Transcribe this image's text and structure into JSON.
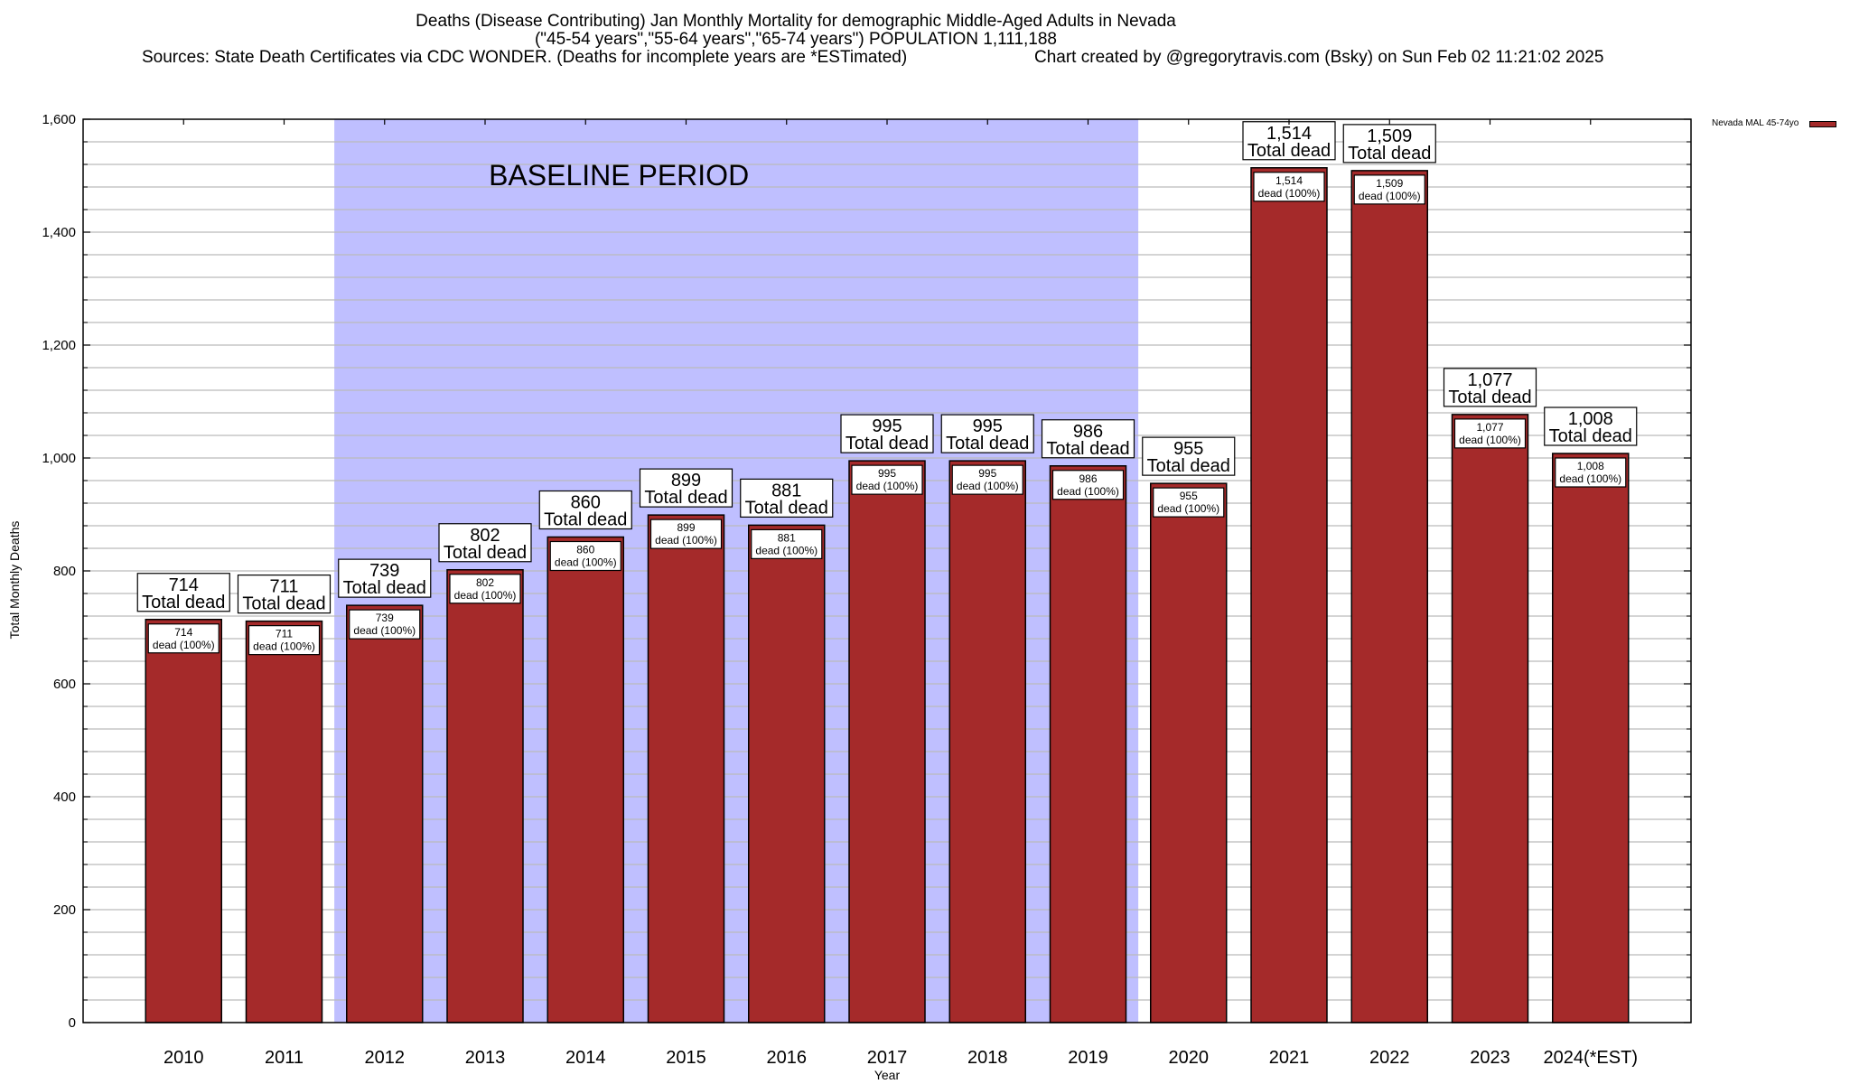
{
  "title": {
    "line1": "Deaths (Disease Contributing) Jan Monthly Mortality for demographic Middle-Aged Adults in Nevada",
    "line2": "(\"45-54 years\",\"55-64 years\",\"65-74 years\") POPULATION 1,111,188",
    "sources": "Sources: State Death Certificates via CDC WONDER. (Deaths for incomplete years are *ESTimated)",
    "credit": "Chart created by @gregorytravis.com (Bsky) on Sun Feb 02 11:21:02 2025"
  },
  "colors": {
    "bar": "#A52A2A",
    "baseline_region": "#BFBFFF",
    "grid": "#BBBBBB"
  },
  "chart_data": {
    "type": "bar",
    "title": "Deaths (Disease Contributing) Jan Monthly Mortality for demographic Middle-Aged Adults in Nevada",
    "xlabel": "Year",
    "ylabel": "Total Monthly Deaths",
    "ylim": [
      0,
      1600
    ],
    "yticks": [
      0,
      200,
      400,
      600,
      800,
      1000,
      1200,
      1400,
      1600
    ],
    "ytick_labels": [
      "0",
      "200",
      "400",
      "600",
      "800",
      "1,000",
      "1,200",
      "1,400",
      "1,600"
    ],
    "minor_grid_step": 40,
    "grid": true,
    "legend": {
      "entries": [
        "Nevada MAL 45-74yo"
      ],
      "placement": "top-right-outside"
    },
    "categories": [
      "2010",
      "2011",
      "2012",
      "2013",
      "2014",
      "2015",
      "2016",
      "2017",
      "2018",
      "2019",
      "2020",
      "2021",
      "2022",
      "2023",
      "2024(*EST)"
    ],
    "series": [
      {
        "name": "Nevada MAL 45-74yo",
        "values": [
          714,
          711,
          739,
          802,
          860,
          899,
          881,
          995,
          995,
          986,
          955,
          1514,
          1509,
          1077,
          1008
        ]
      }
    ],
    "top_labels": [
      "714",
      "711",
      "739",
      "802",
      "860",
      "899",
      "881",
      "995",
      "995",
      "986",
      "955",
      "1,514",
      "1,509",
      "1,077",
      "1,008"
    ],
    "top_label_suffix": "Total dead",
    "inner_label_suffix": "dead (100%)",
    "annotations": [
      {
        "type": "shaded_region",
        "label": "BASELINE PERIOD",
        "from_category": "2012",
        "to_category": "2019"
      }
    ]
  }
}
